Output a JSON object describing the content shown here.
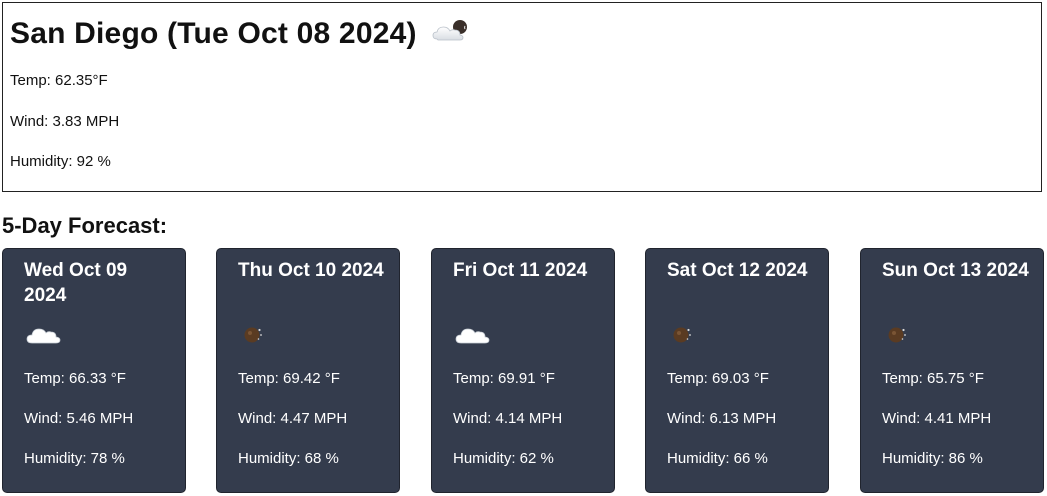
{
  "current": {
    "city": "San Diego",
    "date": "(Tue Oct 08 2024)",
    "icon": "cloud-sun-icon",
    "temp": "Temp: 62.35°F",
    "wind": "Wind: 3.83 MPH",
    "humidity": "Humidity: 92 %"
  },
  "forecast": {
    "heading": "5-Day Forecast:",
    "days": [
      {
        "date": "Wed Oct 09 2024",
        "icon": "cloud-icon",
        "temp": "Temp: 66.33 °F",
        "wind": "Wind: 5.46 MPH",
        "humidity": "Humidity: 78 %"
      },
      {
        "date": "Thu Oct 10 2024",
        "icon": "clear-night-icon",
        "temp": "Temp: 69.42 °F",
        "wind": "Wind: 4.47 MPH",
        "humidity": "Humidity: 68 %"
      },
      {
        "date": "Fri Oct 11 2024",
        "icon": "cloud-icon",
        "temp": "Temp: 69.91 °F",
        "wind": "Wind: 4.14 MPH",
        "humidity": "Humidity: 62 %"
      },
      {
        "date": "Sat Oct 12 2024",
        "icon": "clear-night-icon",
        "temp": "Temp: 69.03 °F",
        "wind": "Wind: 6.13 MPH",
        "humidity": "Humidity: 66 %"
      },
      {
        "date": "Sun Oct 13 2024",
        "icon": "clear-night-icon",
        "temp": "Temp: 65.75 °F",
        "wind": "Wind: 4.41 MPH",
        "humidity": "Humidity: 86 %"
      }
    ]
  },
  "colors": {
    "card_background": "#343c4d",
    "card_text": "#ffffff",
    "page_text": "#111111"
  }
}
